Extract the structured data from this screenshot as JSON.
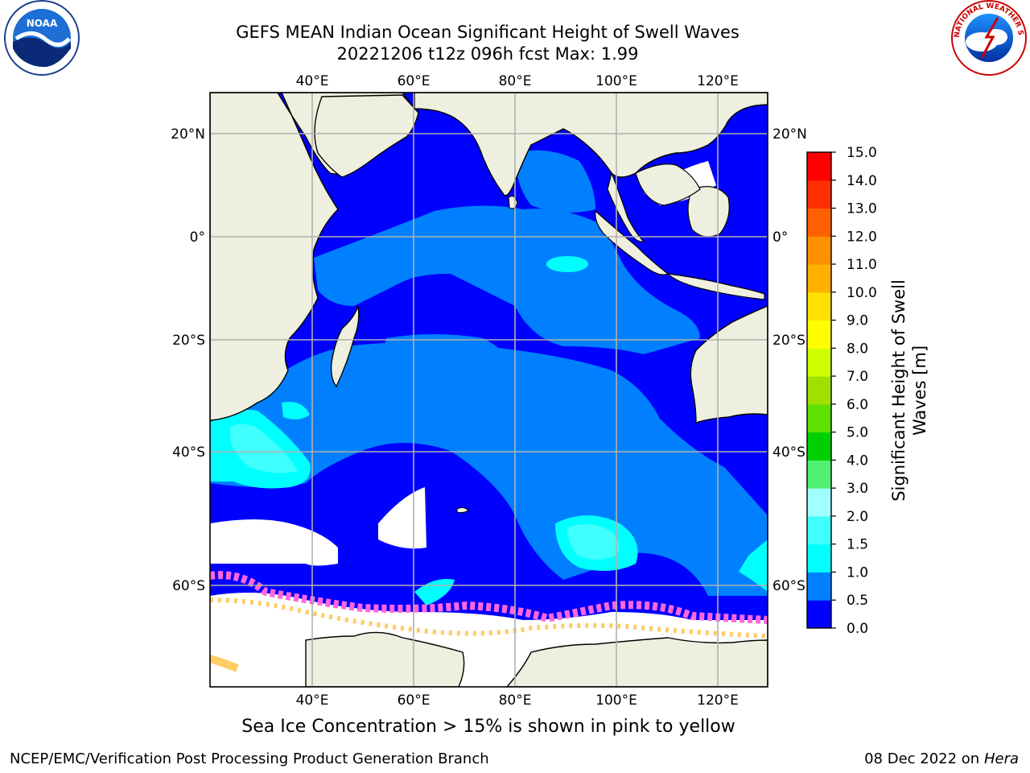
{
  "title_line1": "GEFS MEAN Indian Ocean Significant Height of Swell Waves",
  "title_line2": "20221206 t12z 096h fcst   Max: 1.99",
  "top_lon_labels": [
    "40°E",
    "60°E",
    "80°E",
    "100°E",
    "120°E"
  ],
  "bottom_lon_labels": [
    "40°E",
    "60°E",
    "80°E",
    "100°E",
    "120°E"
  ],
  "left_lat_labels": [
    "20°N",
    "0°",
    "20°S",
    "40°S",
    "60°S"
  ],
  "right_lat_labels": [
    "20°N",
    "0°",
    "20°S",
    "40°S",
    "60°S"
  ],
  "colorbar": {
    "title_line1": "Significant Height of Swell",
    "title_line2": "Waves [m]",
    "ticks": [
      "15.0",
      "14.0",
      "13.0",
      "12.0",
      "11.0",
      "10.0",
      "9.0",
      "8.0",
      "7.0",
      "6.0",
      "5.0",
      "4.0",
      "3.0",
      "2.0",
      "1.5",
      "1.0",
      "0.5",
      "0.0"
    ],
    "colors": [
      "#0000ff",
      "#0080ff",
      "#00ffff",
      "#40ffff",
      "#a0ffff",
      "#50f070",
      "#00d000",
      "#60e000",
      "#a0e000",
      "#d0ff00",
      "#ffff00",
      "#ffe000",
      "#ffb000",
      "#ff9000",
      "#ff6000",
      "#ff3000",
      "#ff0000"
    ]
  },
  "footnote": "Sea Ice Concentration > 15% is shown in pink to yellow",
  "credit": "NCEP/EMC/Verification Post Processing Product Generation Branch",
  "date_prefix": "08 Dec 2022 on",
  "date_host": "Hera",
  "logos": {
    "left": "NOAA",
    "right_text": "NATIONAL WEATHER SERVICE"
  },
  "map_colors": {
    "land": "#efefe0",
    "ocean_low": "#0000ff",
    "ocean_mid": "#0080ff",
    "ocean_hi": "#00ffff",
    "ice": "#ff66dd",
    "ice_edge": "#ffcc66",
    "grid": "#b0b0b0"
  }
}
